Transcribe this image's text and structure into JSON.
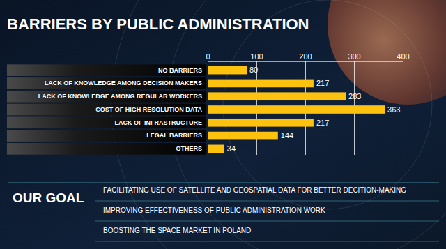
{
  "chart_data": {
    "type": "bar",
    "title": "BARRIERS BY PUBLIC ADMINISTRATION",
    "orientation": "horizontal",
    "categories": [
      "NO BARRIERS",
      "LACK OF KNOWLEDGE AMONG DECISION MAKERS",
      "LACK OF KNOWLEDGE AMONG REGULAR WORKERS",
      "COST OF HIGH RESOLUTION DATA",
      "LACK OF INFRASTRUCTURE",
      "LEGAL BARRIERS",
      "OTHERS"
    ],
    "values": [
      80,
      217,
      283,
      363,
      217,
      144,
      34
    ],
    "color": "#fcc20e",
    "xlim": [
      0,
      400
    ],
    "xticks": [
      0,
      100,
      200,
      300,
      400
    ],
    "grid": true,
    "data_labels": true
  },
  "goal": {
    "title": "OUR GOAL",
    "items": [
      "FACILITATING USE OF SATELLITE AND GEOSPATIAL DATA FOR BETTER DECITION-MAKING",
      "IMPROVING EFFECTIVENESS OF PUBLIC ADMINISTRATION WORK",
      "BOOSTING THE SPACE MARKET IN POLAND"
    ]
  }
}
